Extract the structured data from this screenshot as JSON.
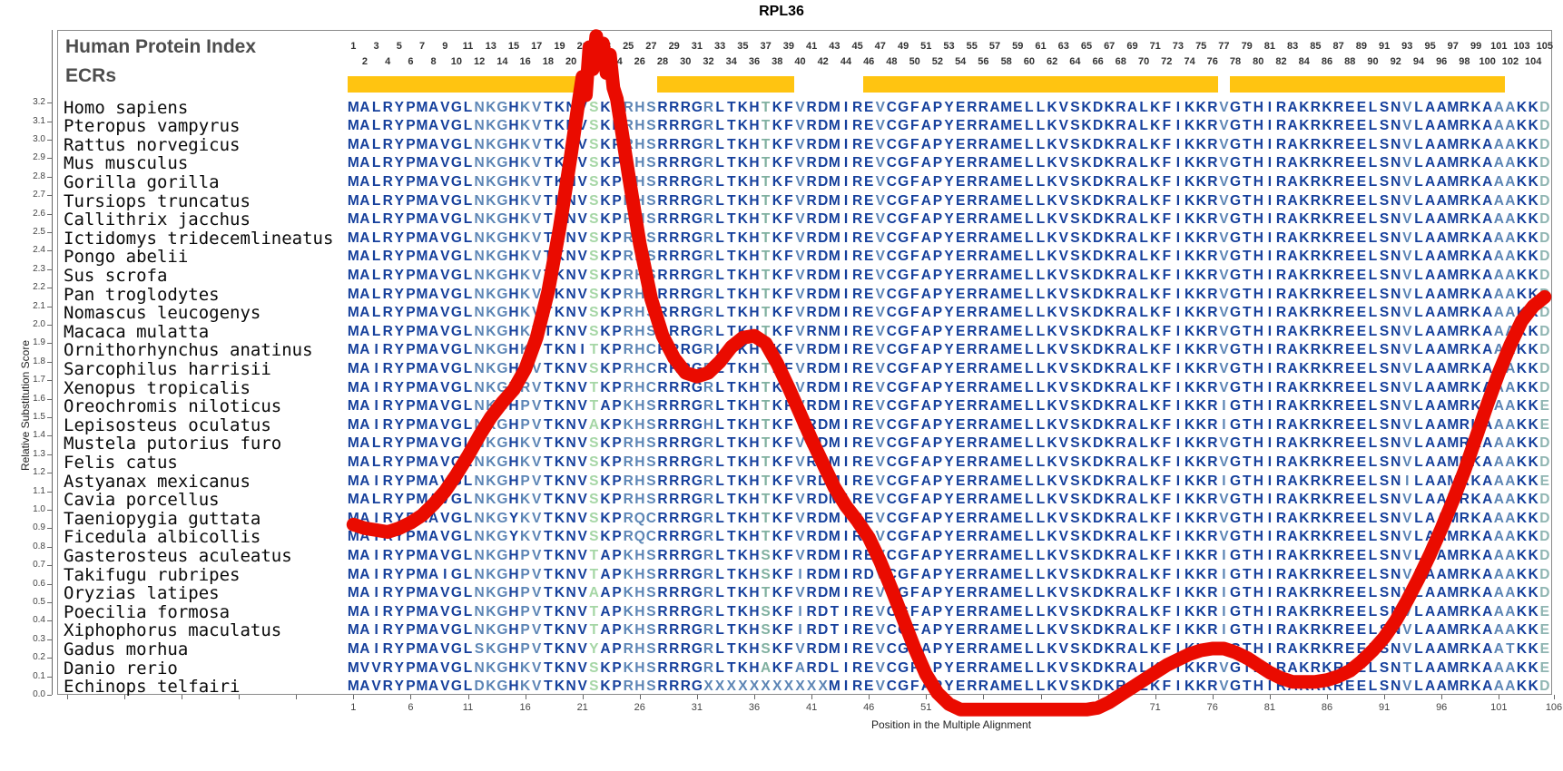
{
  "title": "RPL36",
  "header": {
    "human_protein_index_label": "Human Protein Index",
    "ecrs_label": "ECRs"
  },
  "colors": {
    "curve_red": "#ea0b00",
    "ecr_orange": "#ffc411",
    "aa_navy": "#16409c",
    "aa_steel": "#5c85b5",
    "aa_green": "#a5d6a5",
    "aa_tealgreen": "#80b0a0",
    "aa_teal": "#8fb5b2",
    "header_gray": "#4d4d4d",
    "axis_gray": "#666666"
  },
  "axes": {
    "y_label": "Relative Substitution Score",
    "y_min": 0.0,
    "y_max": 3.2,
    "y_tick_step": 0.1,
    "x_label": "Position in the Multiple Alignment",
    "x_tick_labels": [
      1,
      6,
      11,
      16,
      21,
      26,
      31,
      36,
      41,
      46,
      51,
      56,
      61,
      66,
      71,
      76,
      81,
      86,
      91,
      96,
      101,
      106
    ]
  },
  "numbering": {
    "first_column": 1,
    "last_column": 105
  },
  "ecr_bars_columns": [
    [
      1,
      20
    ],
    [
      28,
      39
    ],
    [
      46,
      76
    ],
    [
      78,
      101
    ]
  ],
  "column_colors": {
    "12": "steel",
    "13": "steel",
    "14": "steel",
    "16": "steel",
    "17": "steel",
    "22": "green",
    "25": "steel",
    "26": "steel",
    "27": "steel",
    "32": "steel",
    "37": "tealgreen",
    "40": "steel",
    "47": "steel",
    "77": "steel",
    "93": "steel",
    "101": "steel",
    "102": "steel",
    "105": "teal"
  },
  "alignment_rows": [
    {
      "species": "Homo sapiens",
      "seq": "MALRYPMAVGLNKGHKVTKNVSKPRHSRRRGRLTKHTKFVRDMIREVCGFAPYERRAMELLKVSKDKRALKFIKKRVGTHIRAKRKREELSNVLAAMRKAAAKKD"
    },
    {
      "species": "Pteropus vampyrus",
      "seq": "MALRYPMAVGLNKGHKVTKNVSKPRHSRRRGRLTKHTKFVRDMIREVCGFAPYERRAMELLKVSKDKRALKFIKKRVGTHIRAKRKREELSNVLAAMRKAAAKKD"
    },
    {
      "species": "Rattus norvegicus",
      "seq": "MALRYPMAVGLNKGHKVTKNVSKPRHSRRRGRLTKHTKFVRDMIREVCGFAPYERRAMELLKVSKDKRALKFIKKRVGTHIRAKRKREELSNVLAAMRKAAAKKD"
    },
    {
      "species": "Mus musculus",
      "seq": "MALRYPMAVGLNKGHKVTKNVSKPRHSRRRGRLTKHTKFVRDMIREVCGFAPYERRAMELLKVSKDKRALKFIKKRVGTHIRAKRKREELSNVLAAMRKAAAKKD"
    },
    {
      "species": "Gorilla gorilla",
      "seq": "MALRYPMAVGLNKGHKVTKNVSKPRHSRRRGRLTKHTKFVRDMIREVCGFAPYERRAMELLKVSKDKRALKFIKKRVGTHIRAKRKREELSNVLAAMRKAAAKKD"
    },
    {
      "species": "Tursiops truncatus",
      "seq": "MALRYPMAVGLNKGHKVTKNVSKPRHSRRRGRLTKHTKFVRDMIREVCGFAPYERRAMELLKVSKDKRALKFIKKRVGTHIRAKRKREELSNVLAAMRKAAAKKD"
    },
    {
      "species": "Callithrix jacchus",
      "seq": "MALRYPMAVGLNKGHKVTKNVSKPRHSRRRGRLTKHTKFVRDMIREVCGFAPYERRAMELLKVSKDKRALKFIKKRVGTHIRAKRKREELSNVLAAMRKAAAKKD"
    },
    {
      "species": "Ictidomys tridecemlineatus",
      "seq": "MALRYPMAVGLNKGHKVTKNVSKPRHSRRRGRLTKHTKFVRDMIREVCGFAPYERRAMELLKVSKDKRALKFIKKRVGTHIRAKRKREELSNVLAAMRKAAAKKD"
    },
    {
      "species": "Pongo abelii",
      "seq": "MALRYPMAVGLNKGHKVTKNVSKPRHSRRRGRLTKHTKFVRDMIREVCGFAPYERRAMELLKVSKDKRALKFIKKRVGTHIRAKRKREELSNVLAAMRKAAAKKD"
    },
    {
      "species": "Sus scrofa",
      "seq": "MALRYPMAVGLNKGHKVTKNVSKPRHSRRRGRLTKHTKFVRDMIREVCGFAPYERRAMELLKVSKDKRALKFIKKRVGTHIRAKRKREELSNVLAAMRKAAAKKD"
    },
    {
      "species": "Pan troglodytes",
      "seq": "MALRYPMAVGLNKGHKVTKNVSKPRHSRRRGRLTKHTKFVRDMIREVCGFAPYERRAMELLKVSKDKRALKFIKKRVGTHIRAKRKREELSNVLAAMRKAAAKKD"
    },
    {
      "species": "Nomascus leucogenys",
      "seq": "MALRYPMAVGLNKGHKVTKNVSKPRHSRRRGRLTKHTKFVRDMIREVCGFAPYERRAMELLKVSKDKRALKFIKKRVGTHIRAKRKREELSNVLAAMRKAAAKKD"
    },
    {
      "species": "Macaca mulatta",
      "seq": "MALRYPMAVGLNKGHKVTKNVSKPRHSRRRGRLTKHTKFVRNMIREVCGFAPYERRAMELLKVSKDKRALKFIKKRVGTHIRAKRKREELSNVLAAMRKAAAKKD"
    },
    {
      "species": "Ornithorhynchus anatinus",
      "seq": "MAIRYPMAVGLNKGHKVTKNITKPRHCRRRGRLTKHTKFVRDMIREVCGFAPYERRAMELLKVSKDKRALKFIKKRVGTHIRAKRKREELSNVLAAMRKAAAKKD"
    },
    {
      "species": "Sarcophilus harrisii",
      "seq": "MAIRYPMAVGLNKGHKVTKNVSKPRHCRRRGRLTKHTKFVRDMIREVCGFAPYERRAMELLKVSKDKRALKFIKKRVGTHIRAKRKREELSNVLAAMRKAAAKKD"
    },
    {
      "species": "Xenopus tropicalis",
      "seq": "MAIRYPMAVGLNKGHRVTKNVTKPRHCRRRGRLTKHTKFVRDMIREVCGFAPYERRAMELLKVSKDKRALKFIKKRVGTHIRAKRKREELSNVLAAMRKAAAKKD"
    },
    {
      "species": "Oreochromis niloticus",
      "seq": "MAIRYPMAVGLNKGHPVTKNVTAPKHSRRRGRLTKHTKFVRDMIREVCGFAPYERRAMELLKVSKDKRALKFIKKRIGTHIRAKRKREELSNVLAAMRKAAAKKE"
    },
    {
      "species": "Lepisosteus oculatus",
      "seq": "MAIRYPMAVGLNKGHPVTKNVAKPKHSRRRGHLTKHTKFVRDMIREVCGFAPYERRAMELLKVSKDKRALKFIKKRIGTHIRAKRKREELSNVLAAMRKAAAKKE"
    },
    {
      "species": "Mustela putorius furo",
      "seq": "MALRYPMAVGLNKGHKVTKNVSKPRHSRRRGRLTKHTKFVRDMIREVCGFAPYERRAMELLKVSKDKRALKFIKKRVGTHIRAKRKREELSNVLAAMRKAAAKKD"
    },
    {
      "species": "Felis catus",
      "seq": "MALRYPMAVGLNKGHKVTKNVSKPRHSRRRGRLTKHTKFVRDMIREVCGFAPYERRAMELLKVSKDKRALKFIKKRVGTHIRAKRKREELSNVLAAMRKAAAKKD"
    },
    {
      "species": "Astyanax mexicanus",
      "seq": "MAIRYPMAVGLNKGHPVTKNVSKPRHSRRRGRLTKHTKFVRDMIREVCGFAPYERRAMELLKVSKDKRALKFIKKRIGTHIRAKRKREELSNILAAMRKAAAKKE"
    },
    {
      "species": "Cavia porcellus",
      "seq": "MALRYPMAVGLNKGHKVTKNVSKPRHSRRRGRLTKHTKFVRDMIREVCGFAPYERRAMELLKVSKDKRALKFIKKRVGTHIRAKRKREELSNVLAAMRKAAAKKD"
    },
    {
      "species": "Taeniopygia guttata",
      "seq": "MAIRYPMAVGLNKGYKVTKNVSKPRQCRRRGRLTKHTKFVRDMIREVCGFAPYERRAMELLKVSKDKRALKFIKKRVGTHIRAKRKREELSNVLAAMRKAAAKKD"
    },
    {
      "species": "Ficedula albicollis",
      "seq": "MAIRYPMAVGLNKGYKVTKNVSKPRQCRRRGRLTKHTKFVRDMIREVCGFAPYERRAMELLKVSKDKRALKFIKKRVGTHIRAKRKREELSNVLAAMRKAAAKKD"
    },
    {
      "species": "Gasterosteus aculeatus",
      "seq": "MAIRYPMAVGLNKGHPVTKNVTAPKHSRRRGRLTKHSKFVRDMIREVCGFAPYERRAMELLKVSKDKRALKFIKKRIGTHIRAKRKREELSNVLAAMRKAAAKKD"
    },
    {
      "species": "Takifugu rubripes",
      "seq": "MAIRYPMAIGLNKGHPVTKNVTAPKHSRRRGRLTKHSKFIRDMIRDVCGFAPYERRAMELLKVSKDKRALKFIKKRIGTHIRAKRKREELSNVLAAMRKAAAKKD"
    },
    {
      "species": "Oryzias latipes",
      "seq": "MAIRYPMAVGLNKGHPVTKNVAAPKHSRRRGRLTKHTKFVRDMIREVCGFAPYERRAMELLKVSKDKRALKFIKKRIGTHIRAKRKREELSNVLAAMRKAAAKKD"
    },
    {
      "species": "Poecilia formosa",
      "seq": "MAIRYPMAVGLNKGHPVTKNVTAPKHSRRRGRLTKHSKFIRDTIREVCGFAPYERRAMELLKVSKDKRALKFIKKRIGTHIRAKRKREELSNVLAAMRKAAAKKE"
    },
    {
      "species": "Xiphophorus maculatus",
      "seq": "MAIRYPMAVGLNKGHPVTKNVTAPKHSRRRGRLTKHSKFIRDTIREVCGFAPYERRAMELLKVSKDKRALKFIKKRIGTHIRAKRKREELSNVLAAMRKAAAKKE"
    },
    {
      "species": "Gadus morhua",
      "seq": "MAIRYPMAVGLSKGHPVTKNVYAPRHSRRRGRLTKHSKFVRDMIREVCGFAPYERRAMELLKVSKDKRALKFIKKRIGTHIRAKRKREELSNVLAAMRKAATKKE"
    },
    {
      "species": "Danio rerio",
      "seq": "MVVRYPMAVGLNKGHKVTKNVSKPKHSRRRGRLTKHAKFARDLIREVCGFAPYERRAMELLKVSKDKRALKFIKKRVGTHIRAKRKREELSNTLAAMRKAAAKKE"
    },
    {
      "species": "Echinops telfairi",
      "seq": "MAVRYPMAVGLDKGHKVTKNVSKPRHSRRRGXXXXXXXXXXXMIREVCGFAPYERRAMELLKVSKDKRALKFIKKRVGTHIRAKRKREELSNVLAAMRKAAAKKD"
    }
  ],
  "chart_data": {
    "type": "line",
    "title": "RPL36",
    "xlabel": "Position in the Multiple Alignment",
    "ylabel": "Relative Substitution Score",
    "ylim": [
      0.0,
      3.2
    ],
    "x_ticks": [
      1,
      6,
      11,
      16,
      21,
      26,
      31,
      36,
      41,
      46,
      51,
      56,
      61,
      66,
      71,
      76,
      81,
      86,
      91,
      96,
      101,
      106
    ],
    "grid": false,
    "legend_position": "none",
    "series_name": "Relative Substitution Score",
    "x_first": 1,
    "values": [
      0.92,
      0.9,
      0.89,
      0.88,
      0.9,
      0.93,
      0.97,
      1.03,
      1.1,
      1.19,
      1.29,
      1.4,
      1.5,
      1.58,
      1.65,
      1.76,
      1.93,
      2.18,
      2.52,
      2.92,
      3.34,
      3.52,
      3.44,
      3.22,
      2.82,
      2.44,
      2.14,
      1.94,
      1.82,
      1.74,
      1.72,
      1.74,
      1.8,
      1.88,
      1.93,
      1.94,
      1.9,
      1.79,
      1.66,
      1.52,
      1.38,
      1.25,
      1.12,
      1.02,
      0.94,
      0.85,
      0.72,
      0.57,
      0.41,
      0.25,
      0.11,
      0.01,
      -0.05,
      -0.08,
      -0.08,
      -0.08,
      -0.08,
      -0.08,
      -0.08,
      -0.08,
      -0.08,
      -0.08,
      -0.08,
      -0.08,
      -0.08,
      -0.07,
      -0.04,
      0.0,
      0.04,
      0.08,
      0.12,
      0.16,
      0.19,
      0.22,
      0.24,
      0.25,
      0.25,
      0.23,
      0.2,
      0.16,
      0.12,
      0.09,
      0.07,
      0.07,
      0.07,
      0.08,
      0.1,
      0.13,
      0.18,
      0.24,
      0.31,
      0.4,
      0.51,
      0.63,
      0.76,
      0.9,
      1.05,
      1.21,
      1.39,
      1.57,
      1.74,
      1.89,
      2.02,
      2.1,
      2.15
    ],
    "peak_clipped_above_ymax": true,
    "peak_jag": [
      [
        20.6,
        3.18
      ],
      [
        21.0,
        3.34
      ],
      [
        21.3,
        3.24
      ],
      [
        21.6,
        3.5
      ],
      [
        21.9,
        3.38
      ],
      [
        22.2,
        3.56
      ],
      [
        22.5,
        3.42
      ],
      [
        22.8,
        3.52
      ],
      [
        23.1,
        3.36
      ],
      [
        23.4,
        3.46
      ],
      [
        23.7,
        3.28
      ],
      [
        24.0,
        3.22
      ]
    ]
  }
}
